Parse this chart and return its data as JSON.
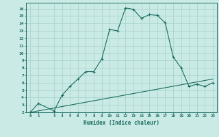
{
  "xlabel": "Humidex (Indice chaleur)",
  "background_color": "#caeae5",
  "grid_color": "#aad4ce",
  "line_color": "#1a6b60",
  "xlim": [
    -0.5,
    23.5
  ],
  "ylim": [
    2,
    16.8
  ],
  "xtick_vals": [
    0,
    1,
    3,
    4,
    5,
    6,
    7,
    8,
    9,
    10,
    11,
    12,
    13,
    14,
    15,
    16,
    17,
    18,
    19,
    20,
    21,
    22,
    23
  ],
  "ytick_vals": [
    2,
    3,
    4,
    5,
    6,
    7,
    8,
    9,
    10,
    11,
    12,
    13,
    14,
    15,
    16
  ],
  "curve1_x": [
    0,
    1,
    3,
    4,
    5,
    6,
    7,
    8,
    9,
    10,
    11,
    12,
    13,
    14,
    15,
    16,
    17,
    18,
    19,
    20,
    21,
    22,
    23
  ],
  "curve1_y": [
    2.0,
    3.2,
    2.2,
    4.3,
    5.5,
    6.5,
    7.5,
    7.5,
    9.2,
    13.2,
    13.0,
    16.1,
    15.9,
    14.7,
    15.2,
    15.1,
    14.1,
    9.5,
    8.0,
    5.5,
    5.8,
    5.5,
    6.0
  ],
  "curve2_x": [
    0,
    23
  ],
  "curve2_y": [
    2.0,
    6.5
  ]
}
